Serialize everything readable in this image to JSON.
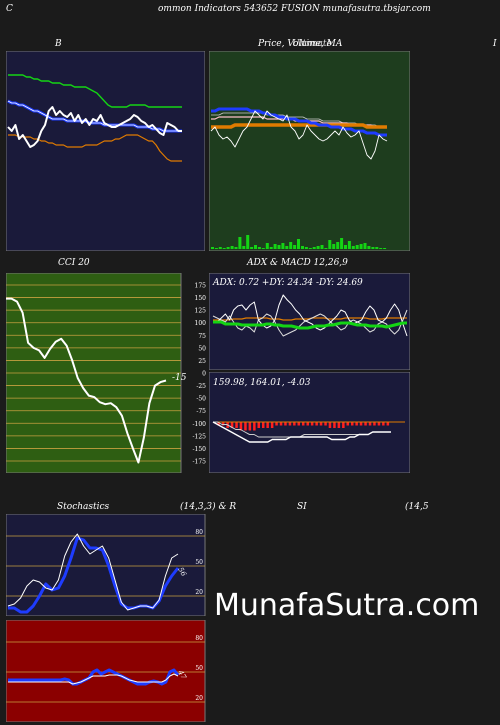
{
  "header": {
    "left_letter": "C",
    "title": "ommon  Indicators 543652  FUSION  munafasutra.tbsjar.com"
  },
  "panels": {
    "bollinger": {
      "title": "B"
    },
    "price_ma": {
      "title": "Price,  Volume,  MA",
      "overlay": "Ultimate",
      "right_edge": "I"
    },
    "cci": {
      "title": "CCI 20",
      "last_value": "-15",
      "axis_labels": [
        "175",
        "150",
        "125",
        "100",
        "75",
        "50",
        "25",
        "0",
        "-25",
        "-50",
        "-75",
        "-100",
        "-125",
        "-150",
        "-175"
      ]
    },
    "adx_macd": {
      "title": "ADX  & MACD 12,26,9",
      "adx_text": "ADX: 0.72  +DY: 24.34  -DY: 24.69",
      "macd_text": "159.98,  164.01,  -4.03"
    },
    "stochastics": {
      "title": "Stochastics",
      "params": "(14,3,3) & R",
      "axis_labels": [
        "80",
        "50",
        "20"
      ],
      "last_value": "56"
    },
    "rsi": {
      "title": "SI",
      "params": "(14,5",
      "axis_labels": [
        "80",
        "50",
        "20"
      ],
      "last_value": "47"
    }
  },
  "watermark": "MunafaSutra.com",
  "colors": {
    "page_bg": "#1b1b1b",
    "navy_bg": "#1a1a3a",
    "green_bg": "#1e3d1e",
    "cci_bg": "#2e5e12",
    "rsi_bg": "#8b0000",
    "blue_line": "#1e3cff",
    "orange_line": "#e07b00",
    "green_line": "#14d414"
  },
  "chart_data": [
    {
      "type": "line",
      "panel": "bollinger",
      "series": [
        {
          "role": "price",
          "color": "#ffffff",
          "values": [
            62,
            60,
            63,
            56,
            58,
            55,
            52,
            53,
            55,
            60,
            63,
            70,
            72,
            68,
            70,
            68,
            67,
            69,
            65,
            68,
            64,
            66,
            63,
            66,
            65,
            68,
            64,
            63,
            62,
            62,
            63,
            64,
            65,
            66,
            68,
            67,
            65,
            64,
            62,
            63,
            61,
            59,
            58,
            64,
            63,
            62,
            60,
            60
          ]
        },
        {
          "role": "upper-band",
          "color": "#14d414",
          "values": [
            88,
            88,
            88,
            88,
            88,
            87,
            87,
            86,
            86,
            85,
            85,
            85,
            84,
            84,
            84,
            83,
            83,
            83,
            82,
            82,
            82,
            82,
            81,
            80,
            79,
            77,
            75,
            73,
            72,
            72,
            72,
            72,
            72,
            73,
            73,
            73,
            73,
            73,
            72,
            72,
            72,
            72,
            72,
            72,
            72,
            72,
            72,
            72
          ]
        },
        {
          "role": "middle-band",
          "color": "#1e3cff",
          "values": [
            75,
            74,
            74,
            73,
            73,
            72,
            71,
            70,
            70,
            69,
            68,
            67,
            66,
            66,
            66,
            66,
            65,
            65,
            65,
            65,
            65,
            65,
            64,
            64,
            64,
            64,
            63,
            63,
            63,
            63,
            63,
            63,
            63,
            63,
            63,
            62,
            62,
            62,
            62,
            61,
            61,
            61,
            60,
            60,
            60,
            60,
            60,
            60
          ]
        },
        {
          "role": "lower-band",
          "color": "#e07b00",
          "values": [
            58,
            58,
            58,
            57,
            57,
            57,
            57,
            56,
            56,
            55,
            55,
            54,
            54,
            53,
            53,
            53,
            52,
            52,
            52,
            52,
            52,
            53,
            53,
            53,
            53,
            54,
            55,
            55,
            55,
            56,
            56,
            57,
            58,
            58,
            58,
            58,
            57,
            56,
            55,
            55,
            53,
            50,
            48,
            46,
            45,
            45,
            45,
            45
          ]
        }
      ]
    },
    {
      "type": "line",
      "panel": "price_ma",
      "series": [
        {
          "role": "price",
          "color": "#ffffff",
          "values": [
            60,
            62,
            58,
            56,
            57,
            55,
            52,
            56,
            60,
            62,
            66,
            70,
            68,
            66,
            70,
            68,
            67,
            66,
            65,
            68,
            62,
            60,
            56,
            58,
            63,
            60,
            58,
            56,
            55,
            56,
            58,
            60,
            58,
            62,
            59,
            57,
            58,
            60,
            54,
            48,
            46,
            50,
            58,
            56,
            55
          ]
        },
        {
          "role": "ma-blue",
          "color": "#1e3cff",
          "values": [
            70,
            70,
            71,
            71,
            71,
            71,
            71,
            71,
            71,
            71,
            70,
            70,
            70,
            69,
            69,
            68,
            68,
            67,
            67,
            66,
            66,
            66,
            65,
            65,
            65,
            64,
            64,
            63,
            63,
            63,
            62,
            62,
            62,
            61,
            61,
            61,
            60,
            60,
            60,
            59,
            59,
            59,
            58,
            58,
            58
          ]
        },
        {
          "role": "ma-orange",
          "color": "#e07b00",
          "values": [
            62,
            62,
            62,
            62,
            62,
            62,
            63,
            63,
            63,
            63,
            63,
            63,
            63,
            63,
            63,
            63,
            63,
            63,
            63,
            63,
            63,
            63,
            63,
            63,
            63,
            63,
            63,
            63,
            63,
            63,
            63,
            63,
            63,
            63,
            63,
            63,
            63,
            63,
            63,
            62,
            62,
            62,
            62,
            62,
            62
          ]
        },
        {
          "role": "ma-pink",
          "color": "#ffc0cb",
          "values": [
            66,
            66,
            67,
            67,
            67,
            67,
            67,
            67,
            67,
            67,
            67,
            67,
            67,
            67,
            66,
            66,
            66,
            66,
            66,
            66,
            66,
            65,
            65,
            65,
            65,
            65,
            65,
            65,
            64,
            64,
            64,
            64,
            64,
            64,
            64,
            63,
            63,
            63,
            63,
            63,
            63,
            62,
            62,
            62,
            62
          ]
        },
        {
          "role": "ma-grey",
          "color": "#cccccc",
          "values": [
            68,
            68,
            68,
            69,
            69,
            69,
            69,
            69,
            69,
            69,
            69,
            69,
            69,
            69,
            68,
            68,
            68,
            68,
            68,
            67,
            67,
            67,
            67,
            67,
            66,
            66,
            66,
            66,
            65,
            65,
            65,
            65,
            65,
            64,
            64,
            64,
            64,
            63,
            63,
            63,
            63,
            63,
            62,
            62,
            62
          ]
        }
      ],
      "volume": [
        2,
        1,
        2,
        1,
        2,
        3,
        2,
        12,
        3,
        14,
        2,
        4,
        2,
        1,
        6,
        2,
        5,
        4,
        6,
        3,
        7,
        4,
        10,
        3,
        2,
        1,
        2,
        3,
        4,
        1,
        9,
        5,
        7,
        11,
        4,
        8,
        3,
        4,
        5,
        6,
        3,
        2,
        2,
        1,
        1
      ]
    },
    {
      "type": "line",
      "panel": "cci",
      "ylim": [
        -175,
        175
      ],
      "series": [
        {
          "role": "cci",
          "color": "#ffffff",
          "values": [
            148,
            148,
            142,
            120,
            60,
            50,
            45,
            30,
            48,
            62,
            68,
            54,
            25,
            -10,
            -30,
            -45,
            -48,
            -58,
            -62,
            -60,
            -68,
            -85,
            -120,
            -150,
            -178,
            -128,
            -60,
            -25,
            -18,
            -15
          ]
        }
      ]
    },
    {
      "type": "line",
      "panel": "adx",
      "series": [
        {
          "role": "adx",
          "color": "#14d414",
          "values": [
            28,
            28,
            28,
            26,
            26,
            26,
            26,
            25,
            25,
            25,
            25,
            25,
            25,
            26,
            26,
            25,
            25,
            24,
            24,
            24,
            23,
            22,
            22,
            22,
            23,
            24,
            24,
            24,
            25,
            25,
            26,
            27,
            27,
            27,
            26,
            25,
            25,
            25,
            24,
            24,
            24,
            24,
            23,
            24,
            25,
            26,
            27,
            27
          ]
        },
        {
          "role": "plus-di",
          "color": "#ffffff",
          "values": [
            28,
            28,
            32,
            36,
            30,
            40,
            44,
            45,
            40,
            45,
            48,
            30,
            25,
            22,
            24,
            30,
            45,
            55,
            50,
            46,
            40,
            36,
            30,
            28,
            26,
            22,
            20,
            22,
            26,
            30,
            34,
            40,
            38,
            30,
            26,
            28,
            30,
            38,
            44,
            40,
            30,
            28,
            32,
            40,
            46,
            40,
            26,
            14
          ]
        },
        {
          "role": "minus-di",
          "color": "#dddddd",
          "values": [
            34,
            32,
            30,
            28,
            34,
            28,
            22,
            20,
            24,
            22,
            18,
            30,
            32,
            36,
            34,
            28,
            20,
            14,
            16,
            18,
            20,
            24,
            28,
            30,
            32,
            34,
            36,
            34,
            30,
            26,
            24,
            20,
            22,
            28,
            30,
            28,
            26,
            22,
            18,
            20,
            26,
            28,
            26,
            20,
            16,
            20,
            30,
            40
          ]
        },
        {
          "role": "orange",
          "color": "#e07b00",
          "values": [
            30,
            30,
            30,
            30,
            30,
            31,
            31,
            31,
            32,
            32,
            32,
            32,
            32,
            32,
            31,
            31,
            31,
            30,
            30,
            30,
            31,
            31,
            31,
            31,
            32,
            32,
            32,
            32,
            31,
            31,
            31,
            31,
            32,
            32,
            32,
            32,
            32,
            32,
            31,
            31,
            31,
            31,
            32,
            32,
            32,
            32,
            32,
            32
          ]
        }
      ]
    },
    {
      "type": "line",
      "panel": "macd",
      "series": [
        {
          "role": "macd",
          "color": "#ffffff",
          "values": [
            0,
            -1,
            -2,
            -3,
            -4,
            -5,
            -6,
            -7,
            -8,
            -8,
            -8,
            -8,
            -8,
            -7,
            -7,
            -7,
            -7,
            -6,
            -6,
            -6,
            -6,
            -6,
            -6,
            -6,
            -6,
            -6,
            -7,
            -7,
            -7,
            -7,
            -6,
            -6,
            -5,
            -5,
            -5,
            -4,
            -4,
            -4,
            -4,
            -4
          ]
        },
        {
          "role": "signal",
          "color": "#cccccc",
          "values": [
            0,
            0,
            -1,
            -1,
            -2,
            -3,
            -3,
            -4,
            -5,
            -5,
            -6,
            -6,
            -6,
            -6,
            -6,
            -6,
            -6,
            -6,
            -6,
            -6,
            -5,
            -5,
            -5,
            -5,
            -5,
            -5,
            -5,
            -5,
            -5,
            -5,
            -5,
            -5,
            -5,
            -5,
            -5,
            -4,
            -4,
            -4,
            -4,
            -4
          ]
        },
        {
          "role": "histogram",
          "color": "#ff2020",
          "values": [
            0,
            -1,
            -1,
            -2,
            -2,
            -2,
            -3,
            -3,
            -3,
            -3,
            -2,
            -2,
            -2,
            -2,
            -1,
            -1,
            -1,
            -1,
            -1,
            -1,
            -1,
            -1,
            -1,
            -1,
            -1,
            -1,
            -2,
            -2,
            -2,
            -2,
            -1,
            -1,
            -1,
            -1,
            -1,
            -1,
            -1,
            -1,
            -1,
            -1
          ]
        }
      ]
    },
    {
      "type": "line",
      "panel": "stochastics",
      "ylim": [
        0,
        100
      ],
      "series": [
        {
          "role": "k",
          "color": "#1e3cff",
          "values": [
            8,
            8,
            4,
            4,
            10,
            20,
            32,
            26,
            28,
            40,
            58,
            78,
            76,
            68,
            68,
            66,
            50,
            30,
            12,
            8,
            8,
            10,
            10,
            8,
            15,
            30,
            40,
            48
          ]
        },
        {
          "role": "d",
          "color": "#ffffff",
          "values": [
            10,
            12,
            18,
            30,
            36,
            34,
            28,
            26,
            36,
            60,
            74,
            82,
            70,
            62,
            66,
            70,
            58,
            36,
            14,
            6,
            8,
            10,
            10,
            8,
            16,
            40,
            58,
            62
          ]
        }
      ]
    },
    {
      "type": "line",
      "panel": "rsi",
      "ylim": [
        0,
        100
      ],
      "series": [
        {
          "role": "rsi",
          "color": "#1e3cff",
          "values": [
            42,
            42,
            42,
            42,
            42,
            42,
            42,
            42,
            42,
            42,
            42,
            42,
            42,
            42,
            43,
            42,
            38,
            38,
            40,
            42,
            44,
            50,
            52,
            48,
            50,
            52,
            50,
            48,
            46,
            44,
            42,
            40,
            38,
            38,
            38,
            40,
            41,
            40,
            38,
            40,
            50,
            52,
            47
          ]
        },
        {
          "role": "signal",
          "color": "#ffffff",
          "values": [
            40,
            40,
            40,
            40,
            40,
            40,
            40,
            40,
            40,
            40,
            40,
            40,
            40,
            40,
            40,
            40,
            38,
            39,
            40,
            42,
            44,
            46,
            46,
            46,
            46,
            47,
            47,
            47,
            46,
            44,
            42,
            41,
            40,
            40,
            40,
            40,
            40,
            40,
            40,
            42,
            46,
            48,
            46
          ]
        }
      ]
    }
  ]
}
